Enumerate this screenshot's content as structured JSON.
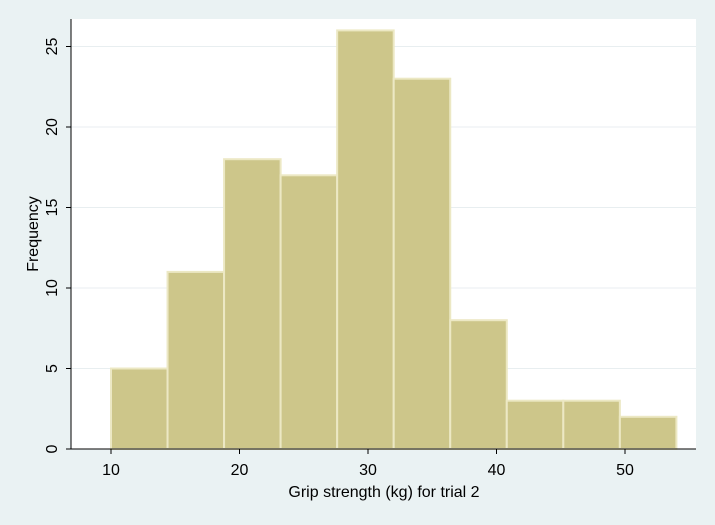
{
  "chart_data": {
    "type": "bar",
    "subtype": "histogram",
    "xlabel": "Grip strength (kg) for trial 2",
    "ylabel": "Frequency",
    "xlim": [
      7,
      55
    ],
    "ylim": [
      0,
      26
    ],
    "xticks": [
      10,
      20,
      30,
      40,
      50
    ],
    "yticks": [
      0,
      5,
      10,
      15,
      20,
      25
    ],
    "grid": "horizontal",
    "bins": [
      {
        "start": 10.0,
        "end": 14.4,
        "count": 5
      },
      {
        "start": 14.4,
        "end": 18.8,
        "count": 11
      },
      {
        "start": 18.8,
        "end": 23.2,
        "count": 18
      },
      {
        "start": 23.2,
        "end": 27.6,
        "count": 17
      },
      {
        "start": 27.6,
        "end": 32.0,
        "count": 26
      },
      {
        "start": 32.0,
        "end": 36.4,
        "count": 23
      },
      {
        "start": 36.4,
        "end": 40.8,
        "count": 8
      },
      {
        "start": 40.8,
        "end": 45.2,
        "count": 3
      },
      {
        "start": 45.2,
        "end": 49.6,
        "count": 3
      },
      {
        "start": 49.6,
        "end": 54.0,
        "count": 2
      }
    ],
    "colors": {
      "bar_fill": "#cdc68a",
      "bar_stroke": "#ece8c4",
      "plot_bg": "#ffffff",
      "outer_bg": "#eaf2f3",
      "grid": "#e8eef0",
      "axis": "#000000"
    }
  }
}
